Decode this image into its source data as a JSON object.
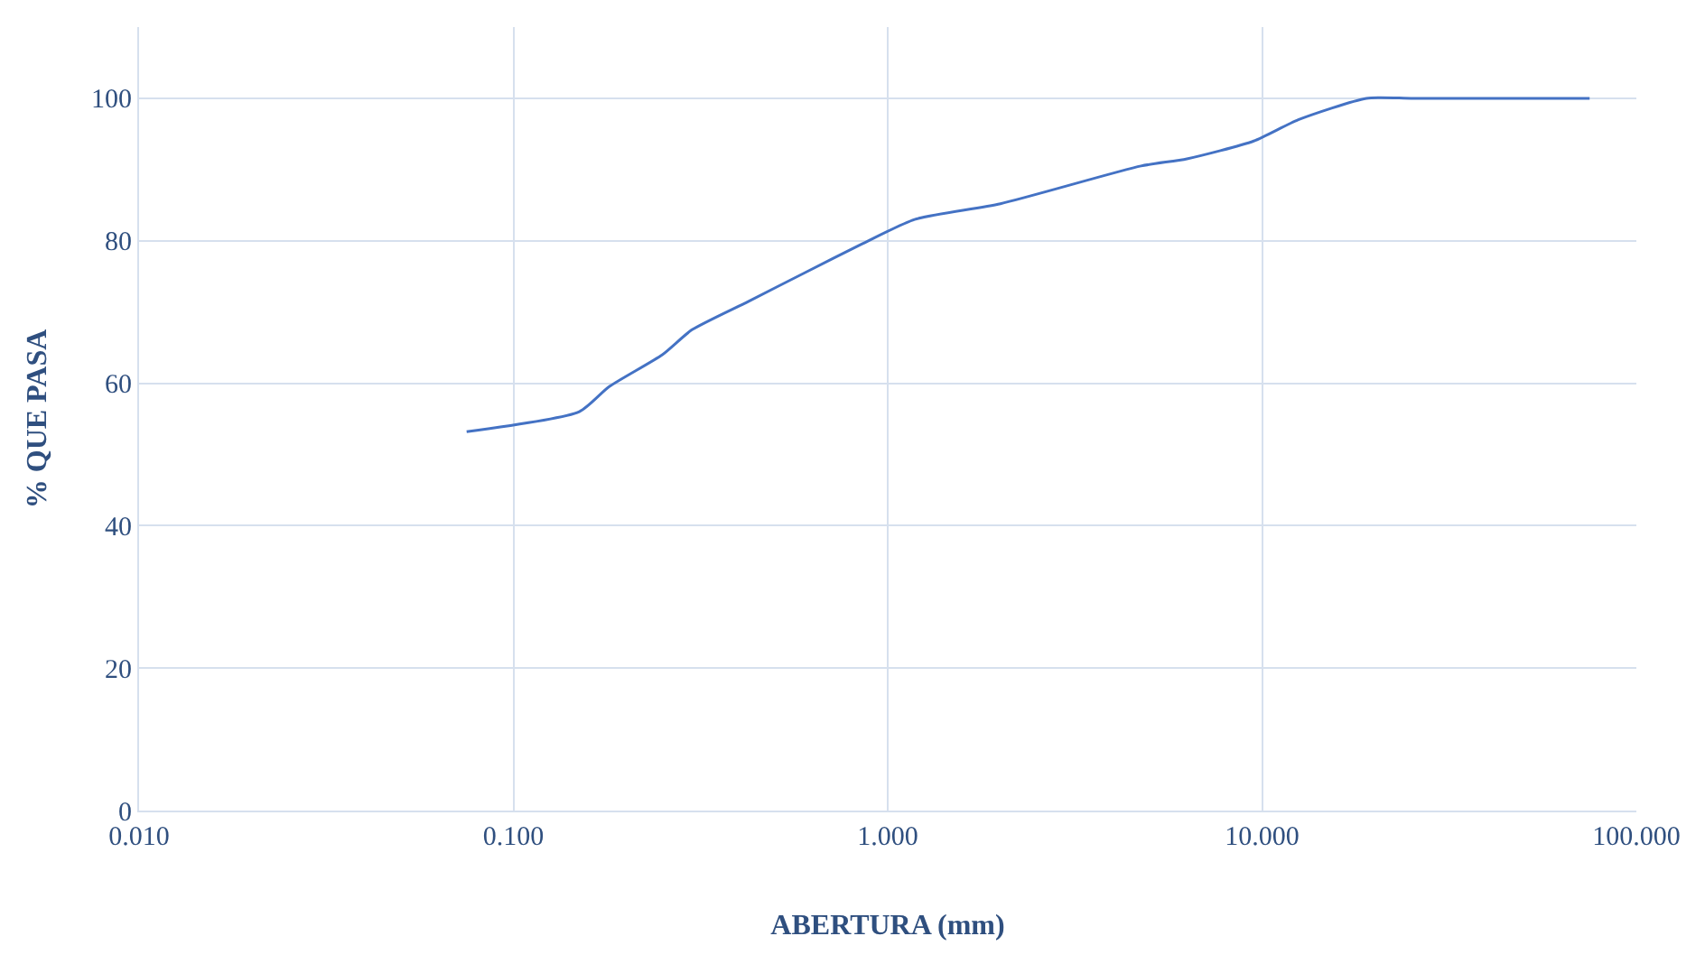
{
  "chart_data": {
    "type": "line",
    "xlabel": "ABERTURA (mm)",
    "ylabel": "% QUE PASA",
    "log": "x",
    "grid": true,
    "legend": false,
    "marker": "none",
    "line_style": "solid",
    "xlim": [
      0.01,
      100
    ],
    "xticks": [
      {
        "value": 0.01,
        "label": "0.010"
      },
      {
        "value": 0.1,
        "label": "0.100"
      },
      {
        "value": 1,
        "label": "1.000"
      },
      {
        "value": 10,
        "label": "10.000"
      },
      {
        "value": 100,
        "label": "100.000"
      }
    ],
    "ylim": [
      0,
      110
    ],
    "yticks": [
      0,
      20,
      40,
      60,
      80,
      100
    ],
    "x": [
      0.075,
      0.15,
      0.18,
      0.25,
      0.3,
      0.425,
      0.6,
      0.85,
      1.18,
      2.0,
      4.75,
      6.3,
      9.5,
      12.5,
      19,
      25,
      37.5,
      50,
      75
    ],
    "series": [
      {
        "color": "#4472c4",
        "values": [
          53.2,
          56,
          59.5,
          64,
          67.5,
          71.5,
          75.5,
          79.5,
          83,
          85.2,
          90.5,
          91.5,
          94,
          97,
          100,
          100,
          100,
          100,
          100
        ]
      }
    ]
  }
}
